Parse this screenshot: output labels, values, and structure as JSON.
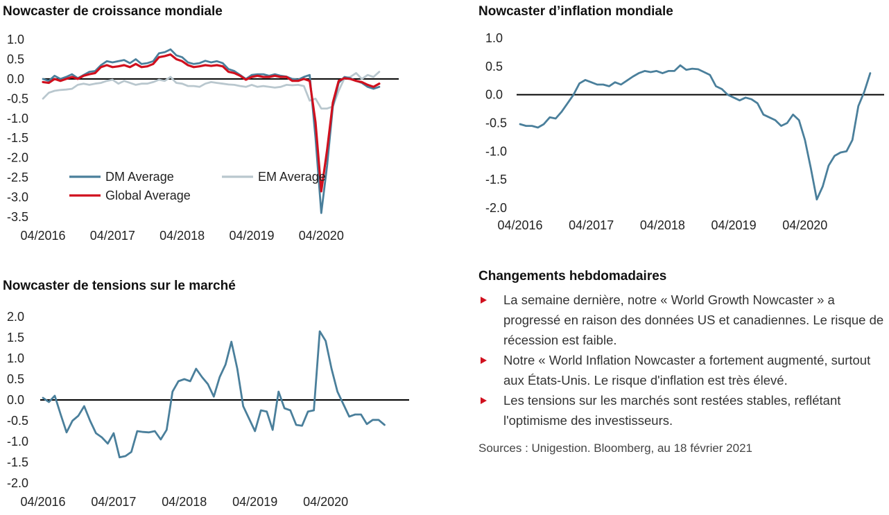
{
  "charts": {
    "growth": {
      "title": "Nowcaster de croissance mondiale",
      "type": "line",
      "x_ticks": [
        "04/2016",
        "04/2017",
        "04/2018",
        "04/2019",
        "04/2020"
      ],
      "y_ticks": [
        "1.0",
        "0.5",
        "0.0",
        "-0.5",
        "-1.0",
        "-1.5",
        "-2.0",
        "-2.5",
        "-3.0",
        "-3.5"
      ],
      "ylim": [
        -3.5,
        1.0
      ],
      "x_unit": "months since 04/2016",
      "xlim": [
        0,
        61
      ],
      "zero_line": true,
      "legend_position": "bottom-left",
      "series": [
        {
          "name": "DM Average",
          "color": "#4a7f9b",
          "x": [
            0,
            1,
            2,
            3,
            4,
            5,
            6,
            7,
            8,
            9,
            10,
            11,
            12,
            13,
            14,
            15,
            16,
            17,
            18,
            19,
            20,
            21,
            22,
            23,
            24,
            25,
            26,
            27,
            28,
            29,
            30,
            31,
            32,
            33,
            34,
            35,
            36,
            37,
            38,
            39,
            40,
            41,
            42,
            43,
            44,
            45,
            46,
            47,
            48,
            49,
            50,
            51,
            52,
            53,
            54,
            55,
            56,
            57,
            58,
            59,
            60,
            61
          ],
          "y": [
            0.0,
            -0.05,
            0.08,
            0.0,
            0.05,
            0.12,
            0.02,
            0.1,
            0.18,
            0.2,
            0.35,
            0.45,
            0.42,
            0.45,
            0.48,
            0.4,
            0.5,
            0.38,
            0.4,
            0.45,
            0.65,
            0.68,
            0.75,
            0.6,
            0.55,
            0.42,
            0.38,
            0.4,
            0.46,
            0.42,
            0.45,
            0.4,
            0.25,
            0.2,
            0.1,
            0.0,
            0.1,
            0.12,
            0.12,
            0.08,
            0.12,
            0.08,
            0.06,
            0.0,
            -0.02,
            0.05,
            0.1,
            -1.5,
            -3.4,
            -2.2,
            -0.7,
            -0.1,
            0.05,
            0.02,
            -0.05,
            -0.1,
            -0.2,
            -0.25,
            -0.2,
            null,
            null,
            null
          ]
        },
        {
          "name": "EM Average",
          "color": "#b9c7ce",
          "x": [
            0,
            1,
            2,
            3,
            4,
            5,
            6,
            7,
            8,
            9,
            10,
            11,
            12,
            13,
            14,
            15,
            16,
            17,
            18,
            19,
            20,
            21,
            22,
            23,
            24,
            25,
            26,
            27,
            28,
            29,
            30,
            31,
            32,
            33,
            34,
            35,
            36,
            37,
            38,
            39,
            40,
            41,
            42,
            43,
            44,
            45,
            46,
            47,
            48,
            49,
            50,
            51,
            52,
            53,
            54,
            55,
            56,
            57,
            58,
            59,
            60,
            61
          ],
          "y": [
            -0.5,
            -0.35,
            -0.3,
            -0.28,
            -0.27,
            -0.25,
            -0.15,
            -0.12,
            -0.15,
            -0.12,
            -0.1,
            -0.05,
            -0.02,
            -0.12,
            -0.05,
            -0.1,
            -0.15,
            -0.12,
            -0.12,
            -0.08,
            -0.02,
            -0.05,
            0.05,
            -0.1,
            -0.12,
            -0.18,
            -0.18,
            -0.2,
            -0.12,
            -0.08,
            -0.1,
            -0.12,
            -0.14,
            -0.15,
            -0.18,
            -0.2,
            -0.15,
            -0.2,
            -0.18,
            -0.2,
            -0.22,
            -0.2,
            -0.15,
            -0.16,
            -0.15,
            -0.18,
            -0.55,
            -0.5,
            -0.75,
            -0.75,
            -0.7,
            -0.3,
            0.02,
            0.05,
            0.15,
            0.0,
            0.1,
            0.05,
            0.18,
            null,
            null,
            null
          ]
        },
        {
          "name": "Global Average",
          "color": "#d0101e",
          "x": [
            0,
            1,
            2,
            3,
            4,
            5,
            6,
            7,
            8,
            9,
            10,
            11,
            12,
            13,
            14,
            15,
            16,
            17,
            18,
            19,
            20,
            21,
            22,
            23,
            24,
            25,
            26,
            27,
            28,
            29,
            30,
            31,
            32,
            33,
            34,
            35,
            36,
            37,
            38,
            39,
            40,
            41,
            42,
            43,
            44,
            45,
            46,
            47,
            48,
            49,
            50,
            51,
            52,
            53,
            54,
            55,
            56,
            57,
            58,
            59,
            60,
            61
          ],
          "y": [
            -0.08,
            -0.1,
            0.0,
            -0.05,
            0.0,
            0.05,
            0.0,
            0.08,
            0.12,
            0.15,
            0.3,
            0.35,
            0.3,
            0.32,
            0.35,
            0.3,
            0.38,
            0.3,
            0.32,
            0.38,
            0.55,
            0.58,
            0.62,
            0.5,
            0.45,
            0.35,
            0.3,
            0.32,
            0.35,
            0.33,
            0.35,
            0.32,
            0.18,
            0.15,
            0.08,
            -0.02,
            0.05,
            0.08,
            0.05,
            0.05,
            0.08,
            0.05,
            0.05,
            -0.05,
            -0.05,
            0.0,
            -0.05,
            -1.1,
            -2.85,
            -1.8,
            -0.6,
            -0.05,
            0.02,
            0.0,
            -0.05,
            -0.08,
            -0.15,
            -0.2,
            -0.12,
            null,
            null,
            null
          ]
        }
      ]
    },
    "inflation": {
      "title": "Nowcaster d’inflation mondiale",
      "type": "line",
      "x_ticks": [
        "04/2016",
        "04/2017",
        "04/2018",
        "04/2019",
        "04/2020"
      ],
      "y_ticks": [
        "1.0",
        "0.5",
        "0.0",
        "-0.5",
        "-1.0",
        "-1.5",
        "-2.0"
      ],
      "ylim": [
        -2.0,
        1.0
      ],
      "x_unit": "months since 04/2016",
      "xlim": [
        0,
        61
      ],
      "zero_line": true,
      "series": [
        {
          "color": "#4a7f9b",
          "x": [
            0,
            1,
            2,
            3,
            4,
            5,
            6,
            7,
            8,
            9,
            10,
            11,
            12,
            13,
            14,
            15,
            16,
            17,
            18,
            19,
            20,
            21,
            22,
            23,
            24,
            25,
            26,
            27,
            28,
            29,
            30,
            31,
            32,
            33,
            34,
            35,
            36,
            37,
            38,
            39,
            40,
            41,
            42,
            43,
            44,
            45,
            46,
            47,
            48,
            49,
            50,
            51,
            52,
            53,
            54,
            55,
            56,
            57,
            58,
            59,
            60,
            61
          ],
          "y": [
            -0.52,
            -0.55,
            -0.55,
            -0.58,
            -0.52,
            -0.4,
            -0.42,
            -0.3,
            -0.15,
            0.0,
            0.2,
            0.26,
            0.22,
            0.18,
            0.18,
            0.15,
            0.22,
            0.18,
            0.25,
            0.32,
            0.38,
            0.42,
            0.4,
            0.42,
            0.38,
            0.42,
            0.42,
            0.52,
            0.44,
            0.46,
            0.45,
            0.4,
            0.35,
            0.15,
            0.1,
            0.0,
            -0.05,
            -0.1,
            -0.05,
            -0.08,
            -0.15,
            -0.35,
            -0.4,
            -0.45,
            -0.55,
            -0.5,
            -0.35,
            -0.45,
            -0.8,
            -1.3,
            -1.85,
            -1.62,
            -1.25,
            -1.08,
            -1.02,
            -1.0,
            -0.8,
            -0.2,
            0.05,
            0.38,
            null,
            null
          ]
        }
      ]
    },
    "stress": {
      "title": "Nowcaster de tensions sur le marché",
      "type": "line",
      "x_ticks": [
        "04/2016",
        "04/2017",
        "04/2018",
        "04/2019",
        "04/2020"
      ],
      "y_ticks": [
        "2.0",
        "1.5",
        "1.0",
        "0.5",
        "0.0",
        "-0.5",
        "-1.0",
        "-1.5",
        "-2.0"
      ],
      "ylim": [
        -2.0,
        2.0
      ],
      "x_unit": "months since 04/2016",
      "xlim": [
        0,
        61
      ],
      "zero_line": true,
      "series": [
        {
          "color": "#4a7f9b",
          "x": [
            0,
            1,
            2,
            3,
            4,
            5,
            6,
            7,
            8,
            9,
            10,
            11,
            12,
            13,
            14,
            15,
            16,
            17,
            18,
            19,
            20,
            21,
            22,
            23,
            24,
            25,
            26,
            27,
            28,
            29,
            30,
            31,
            32,
            33,
            34,
            35,
            36,
            37,
            38,
            39,
            40,
            41,
            42,
            43,
            44,
            45,
            46,
            47,
            48,
            49,
            50,
            51,
            52,
            53,
            54,
            55,
            56,
            57,
            58,
            59,
            60,
            61
          ],
          "y": [
            0.05,
            -0.05,
            0.1,
            -0.35,
            -0.78,
            -0.5,
            -0.38,
            -0.15,
            -0.5,
            -0.8,
            -0.9,
            -1.05,
            -0.8,
            -1.38,
            -1.35,
            -1.25,
            -0.75,
            -0.77,
            -0.78,
            -0.75,
            -0.95,
            -0.72,
            0.2,
            0.45,
            0.5,
            0.45,
            0.75,
            0.55,
            0.38,
            0.08,
            0.55,
            0.85,
            1.4,
            0.75,
            -0.15,
            -0.45,
            -0.75,
            -0.25,
            -0.28,
            -0.72,
            0.2,
            -0.2,
            -0.25,
            -0.6,
            -0.62,
            -0.28,
            -0.25,
            1.65,
            1.42,
            0.75,
            0.2,
            -0.1,
            -0.4,
            -0.35,
            -0.35,
            -0.58,
            -0.48,
            -0.48,
            -0.6,
            null,
            null,
            null
          ]
        }
      ]
    }
  },
  "weekly": {
    "title": "Changements hebdomadaires",
    "bullets": [
      "La semaine dernière, notre « World Growth Nowcaster » a progressé en raison des données US et canadiennes. Le risque de récession est faible.",
      "Notre « World Inflation Nowcaster a fortement augmenté, surtout aux États-Unis. Le risque d'inflation est très élevé.",
      "Les tensions sur les marchés sont restées stables, reflétant l'optimisme des investisseurs."
    ],
    "sources": "Sources : Unigestion. Bloomberg, au 18 février 2021"
  }
}
